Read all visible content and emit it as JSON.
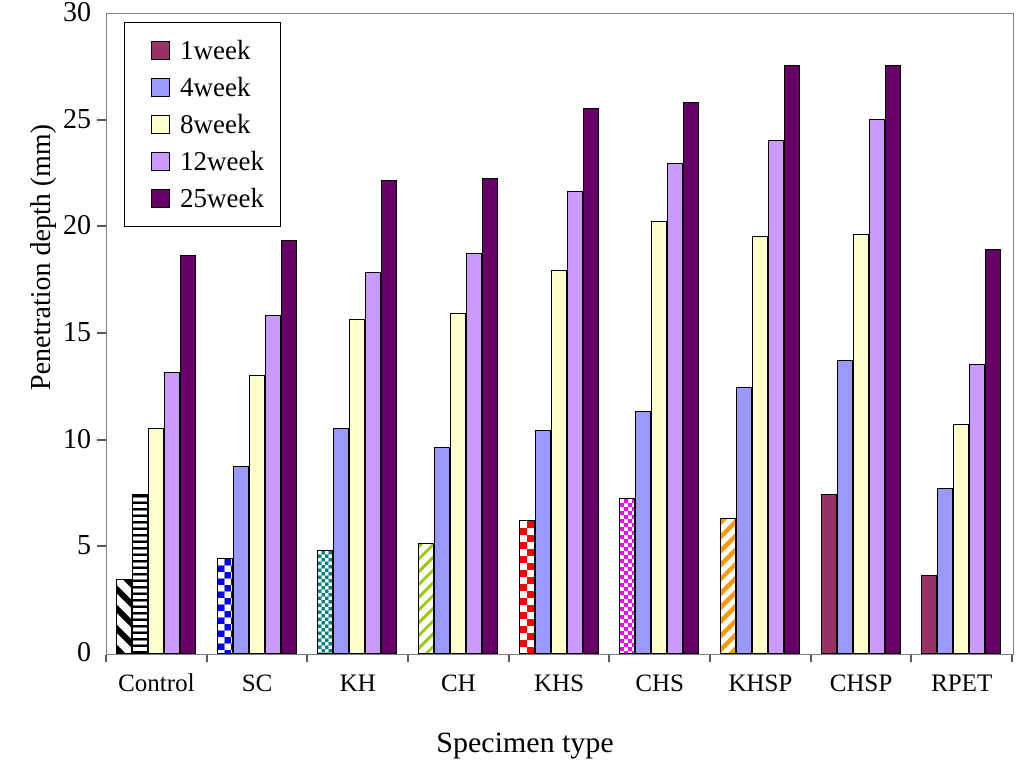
{
  "chart_data": {
    "type": "bar",
    "title": "",
    "xlabel": "Specimen type",
    "ylabel": "Penetration depth (mm)",
    "ylim": [
      0,
      30
    ],
    "yticks": [
      0,
      5,
      10,
      15,
      20,
      25,
      30
    ],
    "grid": false,
    "legend_position": "top-left",
    "categories": [
      "Control",
      "SC",
      "KH",
      "CH",
      "KHS",
      "CHS",
      "KHSP",
      "CHSP",
      "RPET"
    ],
    "series": [
      {
        "name": "1week",
        "color": "#993366",
        "values": [
          3.5,
          4.5,
          4.9,
          5.2,
          6.3,
          7.3,
          6.4,
          7.5,
          3.7
        ],
        "pattern_fills": [
          "diagonal-black",
          "checker-blue",
          "checker-teal",
          "stripe-green",
          "checker-red",
          "checker-magenta",
          "stripe-orange",
          null,
          null
        ]
      },
      {
        "name": "4week",
        "color": "#9999FF",
        "values": [
          7.5,
          8.8,
          10.6,
          9.7,
          10.5,
          11.4,
          12.5,
          13.8,
          7.8
        ],
        "pattern_fills": [
          "hstripe-black",
          null,
          null,
          null,
          null,
          null,
          null,
          null,
          null
        ]
      },
      {
        "name": "8week",
        "color": "#FFFFCC",
        "values": [
          10.6,
          13.1,
          15.7,
          16.0,
          18.0,
          20.3,
          19.6,
          19.7,
          10.8
        ],
        "pattern_fills": [
          null,
          null,
          null,
          null,
          null,
          null,
          null,
          null,
          null
        ]
      },
      {
        "name": "12week",
        "color": "#CC99FF",
        "values": [
          13.2,
          15.9,
          17.9,
          18.8,
          21.7,
          23.0,
          24.1,
          25.1,
          13.6
        ],
        "pattern_fills": [
          null,
          null,
          null,
          null,
          null,
          null,
          null,
          null,
          null
        ]
      },
      {
        "name": "25week",
        "color": "#660066",
        "values": [
          18.7,
          19.4,
          22.2,
          22.3,
          25.6,
          25.9,
          27.6,
          27.6,
          19.0
        ],
        "pattern_fills": [
          null,
          null,
          null,
          null,
          null,
          null,
          null,
          null,
          null
        ]
      }
    ],
    "pattern_colors": {
      "diagonal-black": "#000000",
      "hstripe-black": "#000000",
      "checker-blue": "#0000FF",
      "checker-teal": "#008080",
      "stripe-green": "#99CC00",
      "checker-red": "#FF0000",
      "checker-magenta": "#FF00FF",
      "stripe-orange": "#FF9900"
    }
  }
}
